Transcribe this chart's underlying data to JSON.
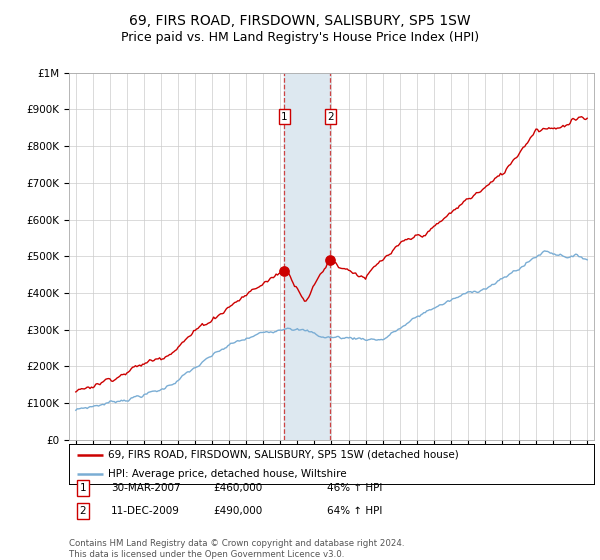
{
  "title": "69, FIRS ROAD, FIRSDOWN, SALISBURY, SP5 1SW",
  "subtitle": "Price paid vs. HM Land Registry's House Price Index (HPI)",
  "title_fontsize": 10,
  "subtitle_fontsize": 9,
  "ylim": [
    0,
    1000000
  ],
  "yticks": [
    0,
    100000,
    200000,
    300000,
    400000,
    500000,
    600000,
    700000,
    800000,
    900000,
    1000000
  ],
  "ytick_labels": [
    "£0",
    "£100K",
    "£200K",
    "£300K",
    "£400K",
    "£500K",
    "£600K",
    "£700K",
    "£800K",
    "£900K",
    "£1M"
  ],
  "line_color_red": "#cc0000",
  "line_color_blue": "#7aadd4",
  "shade_color": "#dde8f0",
  "transaction1_year": 2007.24,
  "transaction1_price": 460000,
  "transaction1_label": "1",
  "transaction1_date": "30-MAR-2007",
  "transaction1_hpi": "46% ↑ HPI",
  "transaction2_year": 2009.94,
  "transaction2_price": 490000,
  "transaction2_label": "2",
  "transaction2_date": "11-DEC-2009",
  "transaction2_hpi": "64% ↑ HPI",
  "legend_entry1": "69, FIRS ROAD, FIRSDOWN, SALISBURY, SP5 1SW (detached house)",
  "legend_entry2": "HPI: Average price, detached house, Wiltshire",
  "price1_str": "£460,000",
  "price2_str": "£490,000",
  "footnote": "Contains HM Land Registry data © Crown copyright and database right 2024.\nThis data is licensed under the Open Government Licence v3.0.",
  "background_color": "#ffffff",
  "grid_color": "#cccccc"
}
